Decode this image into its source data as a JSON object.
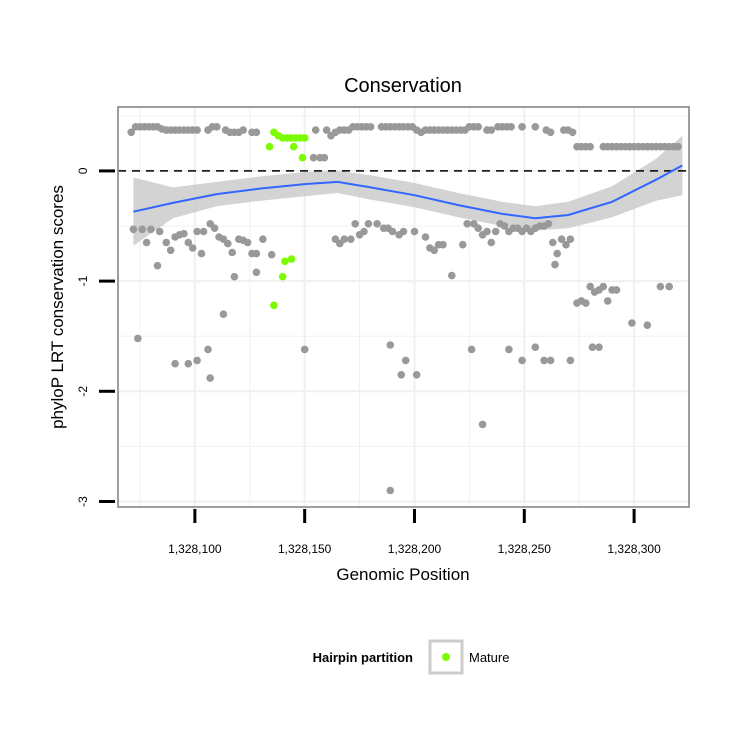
{
  "chart_data": {
    "type": "scatter",
    "title": "Conservation",
    "xlabel": "Genomic Position",
    "ylabel": "phyloP LRT conservation scores",
    "xlim": [
      1328065,
      1328325
    ],
    "ylim": [
      -3.05,
      0.58
    ],
    "x_ticks": [
      {
        "value": 1328100,
        "label": "1,328,100"
      },
      {
        "value": 1328150,
        "label": "1,328,150"
      },
      {
        "value": 1328200,
        "label": "1,328,200"
      },
      {
        "value": 1328250,
        "label": "1,328,250"
      },
      {
        "value": 1328300,
        "label": "1,328,300"
      }
    ],
    "y_ticks": [
      {
        "value": 0,
        "label": "0"
      },
      {
        "value": -1,
        "label": "-1"
      },
      {
        "value": -2,
        "label": "-2"
      },
      {
        "value": -3,
        "label": "-3"
      }
    ],
    "reference_line": {
      "y": 0,
      "style": "dashed"
    },
    "grid": true,
    "legend_position": "bottom",
    "colors": {
      "points": "#999999",
      "mature": "#7CFC00",
      "smooth": "#3366FF",
      "ribbon": "#C8C8C8",
      "grid": "#F0F0F0",
      "panel_border": "#7F7F7F"
    },
    "legend": {
      "title": "Hairpin partition",
      "entries": [
        {
          "label": "Mature",
          "color": "#7CFC00"
        }
      ]
    },
    "series": [
      {
        "points": [
          [
            1328071,
            0.35
          ],
          [
            1328073,
            0.4
          ],
          [
            1328075,
            0.4
          ],
          [
            1328077,
            0.4
          ],
          [
            1328079,
            0.4
          ],
          [
            1328081,
            0.4
          ],
          [
            1328083,
            0.4
          ],
          [
            1328085,
            0.38
          ],
          [
            1328087,
            0.37
          ],
          [
            1328089,
            0.37
          ],
          [
            1328091,
            0.37
          ],
          [
            1328093,
            0.37
          ],
          [
            1328095,
            0.37
          ],
          [
            1328097,
            0.37
          ],
          [
            1328099,
            0.37
          ],
          [
            1328101,
            0.37
          ],
          [
            1328106,
            0.37
          ],
          [
            1328108,
            0.4
          ],
          [
            1328110,
            0.4
          ],
          [
            1328114,
            0.37
          ],
          [
            1328116,
            0.35
          ],
          [
            1328118,
            0.35
          ],
          [
            1328120,
            0.35
          ],
          [
            1328122,
            0.37
          ],
          [
            1328126,
            0.35
          ],
          [
            1328128,
            0.35
          ],
          [
            1328155,
            0.37
          ],
          [
            1328160,
            0.37
          ],
          [
            1328162,
            0.32
          ],
          [
            1328164,
            0.35
          ],
          [
            1328166,
            0.37
          ],
          [
            1328168,
            0.37
          ],
          [
            1328170,
            0.37
          ],
          [
            1328172,
            0.4
          ],
          [
            1328174,
            0.4
          ],
          [
            1328176,
            0.4
          ],
          [
            1328178,
            0.4
          ],
          [
            1328180,
            0.4
          ],
          [
            1328185,
            0.4
          ],
          [
            1328187,
            0.4
          ],
          [
            1328189,
            0.4
          ],
          [
            1328191,
            0.4
          ],
          [
            1328193,
            0.4
          ],
          [
            1328195,
            0.4
          ],
          [
            1328197,
            0.4
          ],
          [
            1328199,
            0.4
          ],
          [
            1328201,
            0.37
          ],
          [
            1328203,
            0.35
          ],
          [
            1328205,
            0.37
          ],
          [
            1328207,
            0.37
          ],
          [
            1328209,
            0.37
          ],
          [
            1328211,
            0.37
          ],
          [
            1328213,
            0.37
          ],
          [
            1328215,
            0.37
          ],
          [
            1328217,
            0.37
          ],
          [
            1328219,
            0.37
          ],
          [
            1328221,
            0.37
          ],
          [
            1328223,
            0.37
          ],
          [
            1328225,
            0.4
          ],
          [
            1328227,
            0.4
          ],
          [
            1328229,
            0.4
          ],
          [
            1328233,
            0.37
          ],
          [
            1328235,
            0.37
          ],
          [
            1328238,
            0.4
          ],
          [
            1328240,
            0.4
          ],
          [
            1328242,
            0.4
          ],
          [
            1328244,
            0.4
          ],
          [
            1328249,
            0.4
          ],
          [
            1328255,
            0.4
          ],
          [
            1328260,
            0.37
          ],
          [
            1328268,
            0.37
          ],
          [
            1328270,
            0.37
          ],
          [
            1328272,
            0.35
          ],
          [
            1328262,
            0.35
          ],
          [
            1328154,
            0.12
          ],
          [
            1328157,
            0.12
          ],
          [
            1328159,
            0.12
          ],
          [
            1328274,
            0.22
          ],
          [
            1328276,
            0.22
          ],
          [
            1328278,
            0.22
          ],
          [
            1328280,
            0.22
          ],
          [
            1328286,
            0.22
          ],
          [
            1328288,
            0.22
          ],
          [
            1328290,
            0.22
          ],
          [
            1328292,
            0.22
          ],
          [
            1328294,
            0.22
          ],
          [
            1328296,
            0.22
          ],
          [
            1328298,
            0.22
          ],
          [
            1328300,
            0.22
          ],
          [
            1328302,
            0.22
          ],
          [
            1328304,
            0.22
          ],
          [
            1328306,
            0.22
          ],
          [
            1328308,
            0.22
          ],
          [
            1328310,
            0.22
          ],
          [
            1328312,
            0.22
          ],
          [
            1328314,
            0.22
          ],
          [
            1328316,
            0.22
          ],
          [
            1328318,
            0.22
          ],
          [
            1328320,
            0.22
          ],
          [
            1328072,
            -0.53
          ],
          [
            1328076,
            -0.53
          ],
          [
            1328080,
            -0.53
          ],
          [
            1328084,
            -0.55
          ],
          [
            1328078,
            -0.65
          ],
          [
            1328087,
            -0.65
          ],
          [
            1328091,
            -0.6
          ],
          [
            1328093,
            -0.58
          ],
          [
            1328095,
            -0.57
          ],
          [
            1328101,
            -0.55
          ],
          [
            1328104,
            -0.55
          ],
          [
            1328107,
            -0.48
          ],
          [
            1328109,
            -0.52
          ],
          [
            1328111,
            -0.6
          ],
          [
            1328113,
            -0.62
          ],
          [
            1328115,
            -0.66
          ],
          [
            1328117,
            -0.74
          ],
          [
            1328120,
            -0.62
          ],
          [
            1328122,
            -0.63
          ],
          [
            1328124,
            -0.65
          ],
          [
            1328126,
            -0.75
          ],
          [
            1328128,
            -0.75
          ],
          [
            1328131,
            -0.62
          ],
          [
            1328135,
            -0.76
          ],
          [
            1328083,
            -0.86
          ],
          [
            1328089,
            -0.72
          ],
          [
            1328097,
            -0.65
          ],
          [
            1328099,
            -0.7
          ],
          [
            1328103,
            -0.75
          ],
          [
            1328118,
            -0.96
          ],
          [
            1328128,
            -0.92
          ],
          [
            1328164,
            -0.62
          ],
          [
            1328166,
            -0.66
          ],
          [
            1328168,
            -0.62
          ],
          [
            1328171,
            -0.62
          ],
          [
            1328173,
            -0.48
          ],
          [
            1328175,
            -0.58
          ],
          [
            1328177,
            -0.55
          ],
          [
            1328179,
            -0.48
          ],
          [
            1328183,
            -0.48
          ],
          [
            1328186,
            -0.52
          ],
          [
            1328188,
            -0.52
          ],
          [
            1328190,
            -0.55
          ],
          [
            1328193,
            -0.58
          ],
          [
            1328195,
            -0.55
          ],
          [
            1328200,
            -0.55
          ],
          [
            1328205,
            -0.6
          ],
          [
            1328207,
            -0.7
          ],
          [
            1328209,
            -0.72
          ],
          [
            1328211,
            -0.67
          ],
          [
            1328213,
            -0.67
          ],
          [
            1328217,
            -0.95
          ],
          [
            1328222,
            -0.67
          ],
          [
            1328224,
            -0.48
          ],
          [
            1328227,
            -0.48
          ],
          [
            1328229,
            -0.52
          ],
          [
            1328231,
            -0.58
          ],
          [
            1328233,
            -0.55
          ],
          [
            1328235,
            -0.65
          ],
          [
            1328237,
            -0.55
          ],
          [
            1328239,
            -0.48
          ],
          [
            1328241,
            -0.5
          ],
          [
            1328243,
            -0.55
          ],
          [
            1328245,
            -0.52
          ],
          [
            1328247,
            -0.52
          ],
          [
            1328249,
            -0.55
          ],
          [
            1328251,
            -0.52
          ],
          [
            1328253,
            -0.55
          ],
          [
            1328255,
            -0.52
          ],
          [
            1328257,
            -0.5
          ],
          [
            1328259,
            -0.5
          ],
          [
            1328261,
            -0.48
          ],
          [
            1328263,
            -0.65
          ],
          [
            1328265,
            -0.75
          ],
          [
            1328267,
            -0.62
          ],
          [
            1328269,
            -0.67
          ],
          [
            1328271,
            -0.62
          ],
          [
            1328264,
            -0.85
          ],
          [
            1328274,
            -1.2
          ],
          [
            1328276,
            -1.18
          ],
          [
            1328278,
            -1.2
          ],
          [
            1328280,
            -1.05
          ],
          [
            1328282,
            -1.1
          ],
          [
            1328284,
            -1.08
          ],
          [
            1328286,
            -1.05
          ],
          [
            1328288,
            -1.18
          ],
          [
            1328290,
            -1.08
          ],
          [
            1328292,
            -1.08
          ],
          [
            1328299,
            -1.38
          ],
          [
            1328306,
            -1.4
          ],
          [
            1328312,
            -1.05
          ],
          [
            1328316,
            -1.05
          ],
          [
            1328074,
            -1.52
          ],
          [
            1328091,
            -1.75
          ],
          [
            1328097,
            -1.75
          ],
          [
            1328101,
            -1.72
          ],
          [
            1328106,
            -1.62
          ],
          [
            1328107,
            -1.88
          ],
          [
            1328113,
            -1.3
          ],
          [
            1328150,
            -1.62
          ],
          [
            1328189,
            -1.58
          ],
          [
            1328194,
            -1.85
          ],
          [
            1328196,
            -1.72
          ],
          [
            1328201,
            -1.85
          ],
          [
            1328226,
            -1.62
          ],
          [
            1328231,
            -2.3
          ],
          [
            1328243,
            -1.62
          ],
          [
            1328249,
            -1.72
          ],
          [
            1328255,
            -1.6
          ],
          [
            1328259,
            -1.72
          ],
          [
            1328262,
            -1.72
          ],
          [
            1328271,
            -1.72
          ],
          [
            1328281,
            -1.6
          ],
          [
            1328284,
            -1.6
          ],
          [
            1328189,
            -2.9
          ]
        ]
      },
      {
        "name": "Mature",
        "points": [
          [
            1328134,
            0.22
          ],
          [
            1328136,
            0.35
          ],
          [
            1328138,
            0.32
          ],
          [
            1328140,
            0.3
          ],
          [
            1328142,
            0.3
          ],
          [
            1328144,
            0.3
          ],
          [
            1328146,
            0.3
          ],
          [
            1328148,
            0.3
          ],
          [
            1328150,
            0.3
          ],
          [
            1328145,
            0.22
          ],
          [
            1328149,
            0.12
          ],
          [
            1328136,
            -1.22
          ],
          [
            1328140,
            -0.96
          ],
          [
            1328141,
            -0.82
          ],
          [
            1328144,
            -0.8
          ]
        ]
      }
    ],
    "smooth": {
      "x": [
        1328072,
        1328090,
        1328110,
        1328130,
        1328150,
        1328165,
        1328180,
        1328200,
        1328220,
        1328240,
        1328255,
        1328270,
        1328290,
        1328310,
        1328322
      ],
      "y": [
        -0.37,
        -0.29,
        -0.21,
        -0.16,
        -0.12,
        -0.1,
        -0.15,
        -0.22,
        -0.31,
        -0.39,
        -0.43,
        -0.4,
        -0.28,
        -0.08,
        0.05
      ],
      "lower": [
        -0.68,
        -0.43,
        -0.32,
        -0.27,
        -0.23,
        -0.2,
        -0.26,
        -0.33,
        -0.42,
        -0.5,
        -0.54,
        -0.52,
        -0.42,
        -0.27,
        -0.22
      ],
      "upper": [
        -0.06,
        -0.15,
        -0.1,
        -0.05,
        -0.01,
        0.0,
        -0.04,
        -0.11,
        -0.2,
        -0.28,
        -0.32,
        -0.28,
        -0.14,
        0.11,
        0.32
      ]
    }
  }
}
